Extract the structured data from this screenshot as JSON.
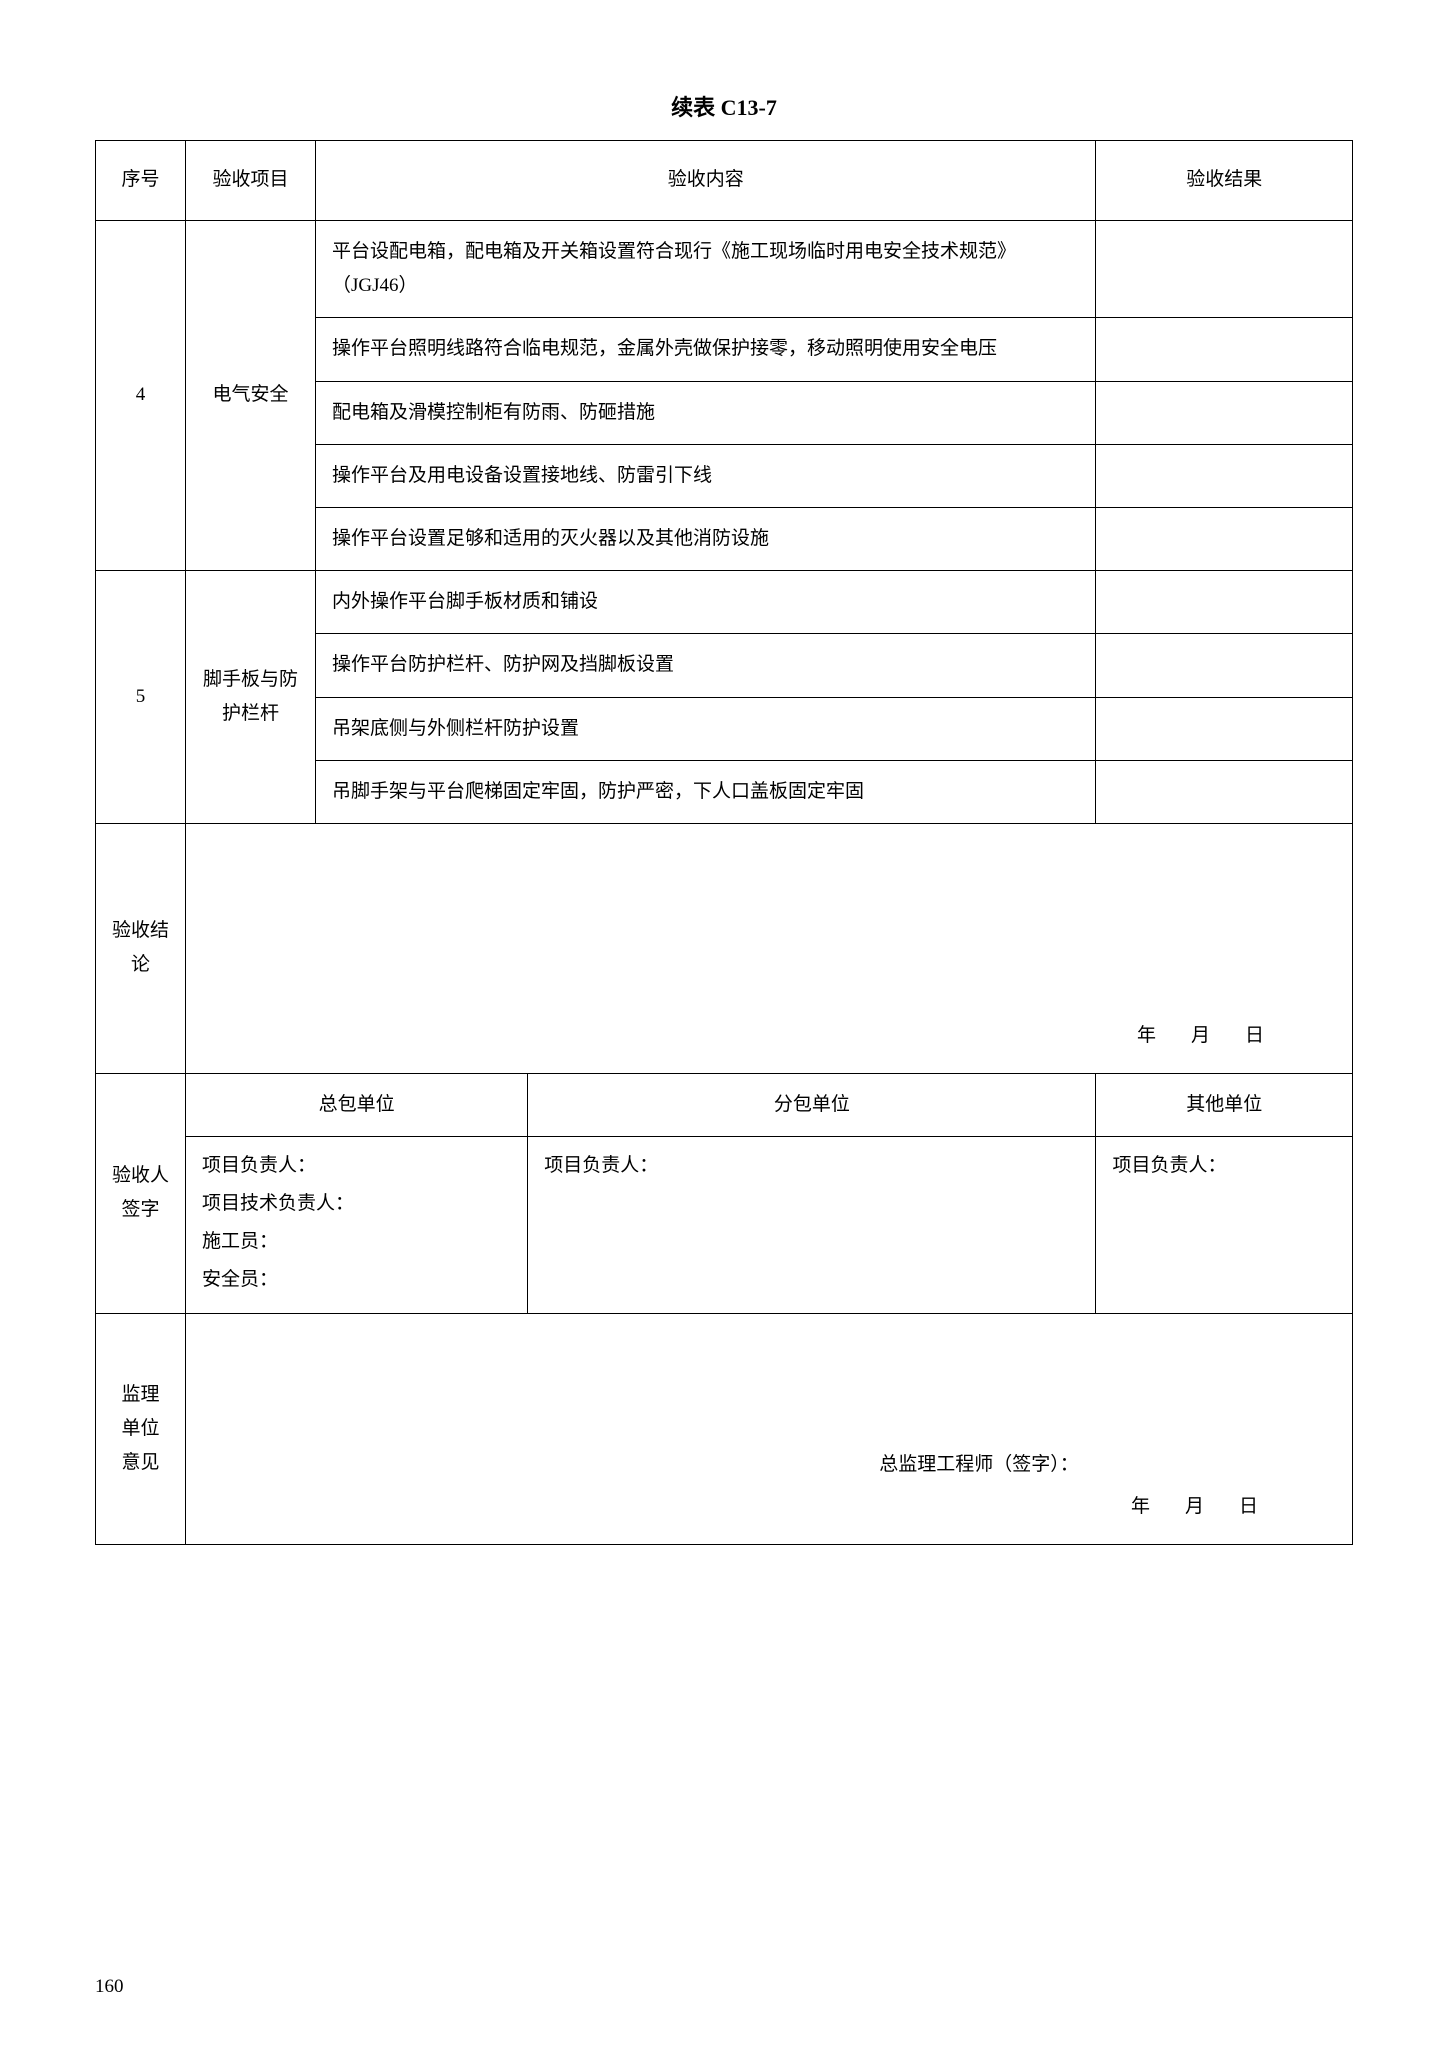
{
  "title": "续表 C13-7",
  "headers": {
    "num": "序号",
    "item": "验收项目",
    "content": "验收内容",
    "result": "验收结果"
  },
  "rows": [
    {
      "num": "4",
      "item": "电气安全",
      "contents": [
        "平台设配电箱，配电箱及开关箱设置符合现行《施工现场临时用电安全技术规范》（JGJ46）",
        "操作平台照明线路符合临电规范，金属外壳做保护接零，移动照明使用安全电压",
        "配电箱及滑模控制柜有防雨、防砸措施",
        "操作平台及用电设备设置接地线、防雷引下线",
        "操作平台设置足够和适用的灭火器以及其他消防设施"
      ]
    },
    {
      "num": "5",
      "item": "脚手板与防护栏杆",
      "contents": [
        "内外操作平台脚手板材质和铺设",
        "操作平台防护栏杆、防护网及挡脚板设置",
        "吊架底侧与外侧栏杆防护设置",
        "吊脚手架与平台爬梯固定牢固，防护严密，下人口盖板固定牢固"
      ]
    }
  ],
  "conclusion": {
    "label": "验收结论",
    "date": "年　月　日"
  },
  "signature": {
    "label": "验收人签字",
    "units": {
      "general": "总包单位",
      "sub": "分包单位",
      "other": "其他单位"
    },
    "general_lines": {
      "l1": "项目负责人：",
      "l2": "项目技术负责人：",
      "l3": "施工员：",
      "l4": "安全员："
    },
    "sub_line": "项目负责人：",
    "other_line": "项目负责人："
  },
  "opinion": {
    "label_l1": "监理",
    "label_l2": "单位",
    "label_l3": "意见",
    "sig": "总监理工程师（签字）：",
    "date": "年　月　日"
  },
  "page_number": "160"
}
